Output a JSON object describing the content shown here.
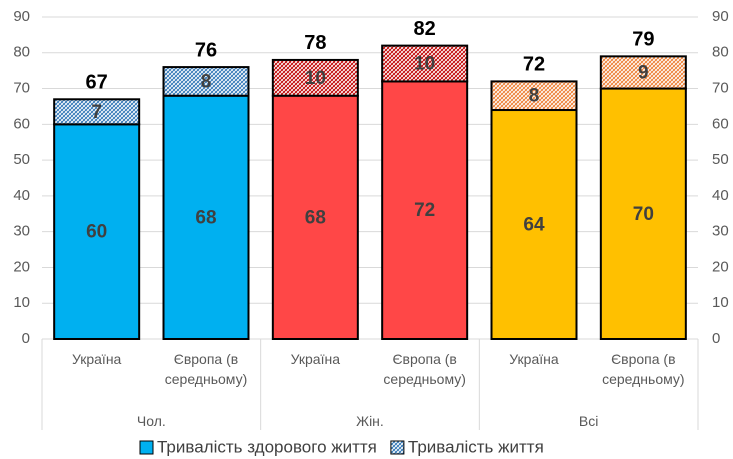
{
  "chart_data": {
    "type": "stacked_bar",
    "categories": [
      "Україна",
      "Європа (в середньому)",
      "Україна",
      "Європа (в середньому)",
      "Україна",
      "Європа (в середньому)"
    ],
    "groups": [
      "Чол.",
      "Жін.",
      "Всі"
    ],
    "group_of_category": [
      0,
      0,
      1,
      1,
      2,
      2
    ],
    "series": [
      {
        "name": "Тривалість здорового життя",
        "colors": [
          "#00b0f0",
          "#00b0f0",
          "#ff4747",
          "#ff4747",
          "#ffc000",
          "#ffc000"
        ],
        "values": [
          60,
          68,
          68,
          72,
          64,
          70
        ]
      },
      {
        "name": "Тривалість життя",
        "hatched": true,
        "colors": [
          "#2e75b6",
          "#2e75b6",
          "#c00000",
          "#c00000",
          "#ed7d31",
          "#ed7d31"
        ],
        "values": [
          7,
          8,
          10,
          10,
          8,
          9
        ]
      }
    ],
    "totals": [
      67,
      76,
      78,
      82,
      72,
      79
    ],
    "ylim": [
      0,
      90
    ],
    "yticks": [
      0,
      10,
      20,
      30,
      40,
      50,
      60,
      70,
      80,
      90
    ],
    "y2ticks": [
      0,
      10,
      20,
      30,
      40,
      50,
      60,
      70,
      80,
      90
    ],
    "grid": true,
    "legend": "bottom"
  }
}
